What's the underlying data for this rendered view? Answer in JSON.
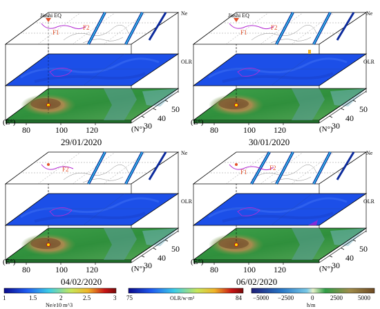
{
  "panels": [
    {
      "date": "29/01/2020",
      "layer_labels": {
        "top": "Ne",
        "middle": "OLR"
      },
      "annotations": {
        "epicenter": "Jiashi EQ",
        "fault1": "F1",
        "fault2": "F2"
      },
      "axes": {
        "lon_unit": "(E°)",
        "lat_unit": "(N°)",
        "lon_ticks": [
          "80",
          "100",
          "120"
        ],
        "lat_ticks": [
          "30",
          "40",
          "50"
        ]
      }
    },
    {
      "date": "30/01/2020",
      "layer_labels": {
        "top": "Ne",
        "middle": "OLR"
      },
      "annotations": {
        "epicenter": "Jiashi EQ",
        "fault1": "F1",
        "fault2": "F2"
      },
      "axes": {
        "lon_unit": "(E°)",
        "lat_unit": "(N°)",
        "lon_ticks": [
          "80",
          "100",
          "120"
        ],
        "lat_ticks": [
          "30",
          "40",
          "50"
        ]
      }
    },
    {
      "date": "04/02/2020",
      "layer_labels": {
        "top": "Ne",
        "middle": "OLR"
      },
      "annotations": {
        "epicenter": "",
        "fault1": "",
        "fault2": "F2"
      },
      "axes": {
        "lon_unit": "(E°)",
        "lat_unit": "(N°)",
        "lon_ticks": [
          "80",
          "100",
          "120"
        ],
        "lat_ticks": [
          "30",
          "40",
          "50"
        ]
      }
    },
    {
      "date": "06/02/2020",
      "layer_labels": {
        "top": "Ne",
        "middle": "OLR"
      },
      "annotations": {
        "epicenter": "",
        "fault1": "F1",
        "fault2": "F2"
      },
      "axes": {
        "lon_unit": "(E°)",
        "lat_unit": "(N°)",
        "lon_ticks": [
          "80",
          "100",
          "120"
        ],
        "lat_ticks": [
          "30",
          "40",
          "50"
        ]
      }
    }
  ],
  "colorbars": [
    {
      "name": "ne",
      "label": "Ne/e10 m^3",
      "ticks": [
        "1",
        "1.5",
        "2",
        "2.5",
        "3"
      ],
      "colors": [
        "#0a0a8c",
        "#1e5af0",
        "#3ccde6",
        "#c8e65a",
        "#f0b428",
        "#c81414",
        "#780a0a"
      ]
    },
    {
      "name": "olr",
      "label": "OLR/w·m²",
      "ticks": [
        "75",
        "84"
      ],
      "colors": [
        "#0a0a8c",
        "#1e5af0",
        "#3ccde6",
        "#c8e65a",
        "#f0b428",
        "#c81414",
        "#780a0a"
      ]
    },
    {
      "name": "elevation",
      "label": "h/m",
      "ticks": [
        "−5000",
        "−2500",
        "0",
        "2500",
        "5000"
      ],
      "colors": [
        "#1e1e78",
        "#2878c8",
        "#78c8e6",
        "#e6f0c8",
        "#2e9e46",
        "#a08c4a",
        "#6e4a23"
      ]
    }
  ],
  "colors": {
    "ne_background": "#ffffff",
    "olr_field": "#1c4fe8",
    "track_outer": "#0b2a9c",
    "track_inner": "#36c7ee",
    "fault_line": "#b01fd0",
    "fault_label": "#e2502a",
    "terrain_low": "#2f9a3e",
    "terrain_high": "#8a6a38"
  }
}
